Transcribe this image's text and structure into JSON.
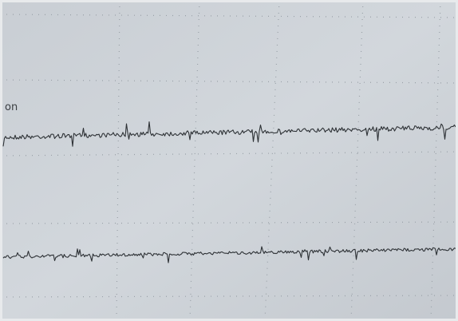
{
  "label": "on"
}
